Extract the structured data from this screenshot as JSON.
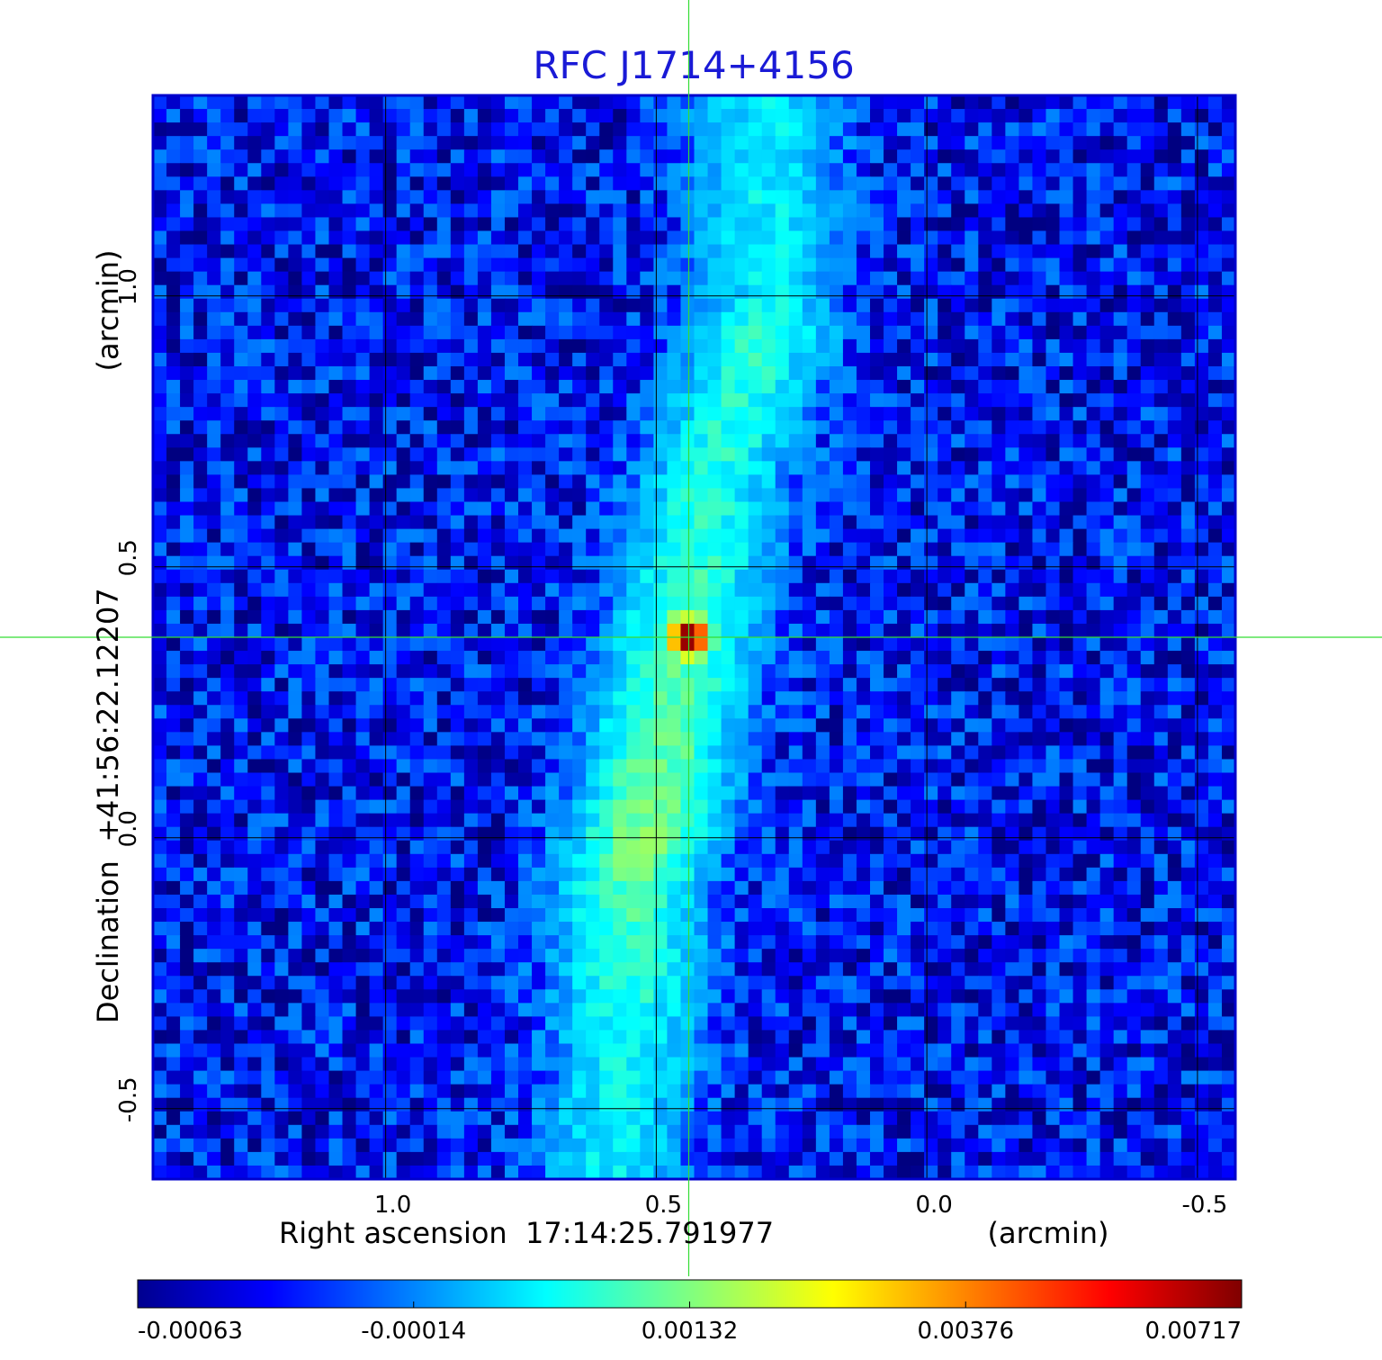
{
  "chart_data": {
    "type": "heatmap",
    "title": "RFC J1714+4156",
    "xlabel": "Right ascension  17:14:25.791977",
    "x_unit": "(arcmin)",
    "ylabel": "Declination  +41:56:22.12207",
    "y_unit": "(arcmin)",
    "x_ticks": [
      "1.0",
      "0.5",
      "0.0",
      "-0.5"
    ],
    "y_ticks": [
      "1.0",
      "0.5",
      "0.0",
      "-0.5"
    ],
    "xlim": [
      1.43,
      -0.57
    ],
    "ylim": [
      -0.63,
      1.37
    ],
    "grid": true,
    "crosshair": {
      "x": 0.44,
      "y": 0.37
    },
    "colorbar": {
      "ticks": [
        "-0.00063",
        "-0.00014",
        "0.00132",
        "0.00376",
        "0.00717"
      ],
      "range": [
        -0.00063,
        0.00717
      ],
      "colormap": "jet",
      "placement": "bottom"
    },
    "features": {
      "peak": {
        "x": 0.44,
        "y": 0.37,
        "value": 0.00717
      },
      "diffuse_ridge": [
        {
          "x": 0.3,
          "y": 1.0,
          "value": 0.0009
        },
        {
          "x": 0.3,
          "y": 0.95,
          "value": 0.0012
        },
        {
          "x": 0.4,
          "y": 0.65,
          "value": 0.0011
        },
        {
          "x": 0.5,
          "y": 0.1,
          "value": 0.0016
        },
        {
          "x": 0.52,
          "y": 0.0,
          "value": 0.0018
        },
        {
          "x": 0.55,
          "y": -0.1,
          "value": 0.0014
        },
        {
          "x": 0.55,
          "y": -0.4,
          "value": 0.001
        },
        {
          "x": 0.58,
          "y": -0.55,
          "value": 0.0009
        }
      ]
    }
  },
  "colors": {
    "title": "#1a1ad6",
    "frame": "#0000cc",
    "grid": "#000000",
    "crosshair": "#33dd33",
    "text": "#000000"
  }
}
